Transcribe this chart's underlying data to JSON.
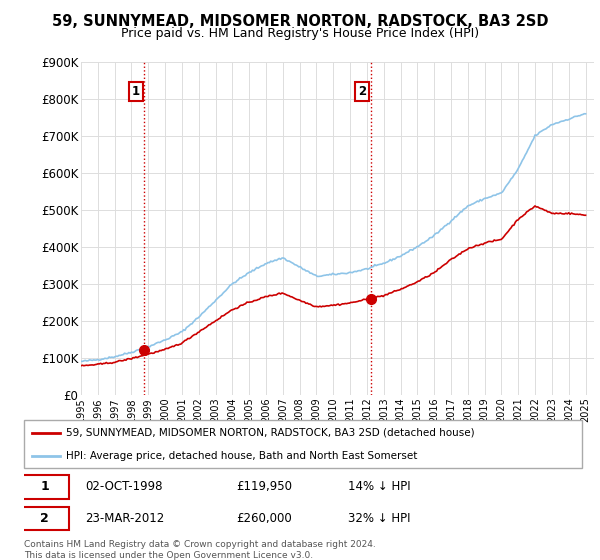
{
  "title": "59, SUNNYMEAD, MIDSOMER NORTON, RADSTOCK, BA3 2SD",
  "subtitle": "Price paid vs. HM Land Registry's House Price Index (HPI)",
  "legend_line1": "59, SUNNYMEAD, MIDSOMER NORTON, RADSTOCK, BA3 2SD (detached house)",
  "legend_line2": "HPI: Average price, detached house, Bath and North East Somerset",
  "purchase1_date": "02-OCT-1998",
  "purchase1_price": "£119,950",
  "purchase1_hpi": "14% ↓ HPI",
  "purchase2_date": "23-MAR-2012",
  "purchase2_price": "£260,000",
  "purchase2_hpi": "32% ↓ HPI",
  "footnote": "Contains HM Land Registry data © Crown copyright and database right 2024.\nThis data is licensed under the Open Government Licence v3.0.",
  "hpi_color": "#8ec4e8",
  "price_color": "#cc0000",
  "vline_color": "#cc0000",
  "grid_color": "#dddddd",
  "ylim": [
    0,
    900000
  ],
  "yticks": [
    0,
    100000,
    200000,
    300000,
    400000,
    500000,
    600000,
    700000,
    800000,
    900000
  ],
  "ytick_labels": [
    "£0",
    "£100K",
    "£200K",
    "£300K",
    "£400K",
    "£500K",
    "£600K",
    "£700K",
    "£800K",
    "£900K"
  ],
  "purchase1_year": 1998.75,
  "purchase2_year": 2012.23,
  "purchase1_value": 119950,
  "purchase2_value": 260000,
  "hpi_base_years": [
    1995,
    1996,
    1997,
    1998,
    1999,
    2000,
    2001,
    2002,
    2003,
    2004,
    2005,
    2006,
    2007,
    2008,
    2009,
    2010,
    2011,
    2012,
    2013,
    2014,
    2015,
    2016,
    2017,
    2018,
    2019,
    2020,
    2021,
    2022,
    2023,
    2024,
    2025
  ],
  "hpi_base_vals": [
    90000,
    95000,
    103000,
    115000,
    130000,
    148000,
    170000,
    210000,
    255000,
    300000,
    330000,
    355000,
    370000,
    345000,
    320000,
    325000,
    330000,
    340000,
    355000,
    375000,
    400000,
    430000,
    470000,
    510000,
    530000,
    545000,
    610000,
    700000,
    730000,
    745000,
    760000
  ],
  "price_base_years": [
    1995,
    1996,
    1997,
    1998,
    1999,
    2000,
    2001,
    2002,
    2003,
    2004,
    2005,
    2006,
    2007,
    2008,
    2009,
    2010,
    2011,
    2012,
    2013,
    2014,
    2015,
    2016,
    2017,
    2018,
    2019,
    2020,
    2021,
    2022,
    2023,
    2024,
    2025
  ],
  "price_base_vals": [
    78000,
    82000,
    88000,
    98000,
    110000,
    122000,
    140000,
    170000,
    200000,
    230000,
    250000,
    265000,
    275000,
    255000,
    238000,
    242000,
    248000,
    258000,
    268000,
    285000,
    305000,
    330000,
    365000,
    395000,
    410000,
    420000,
    475000,
    510000,
    490000,
    490000,
    485000
  ]
}
